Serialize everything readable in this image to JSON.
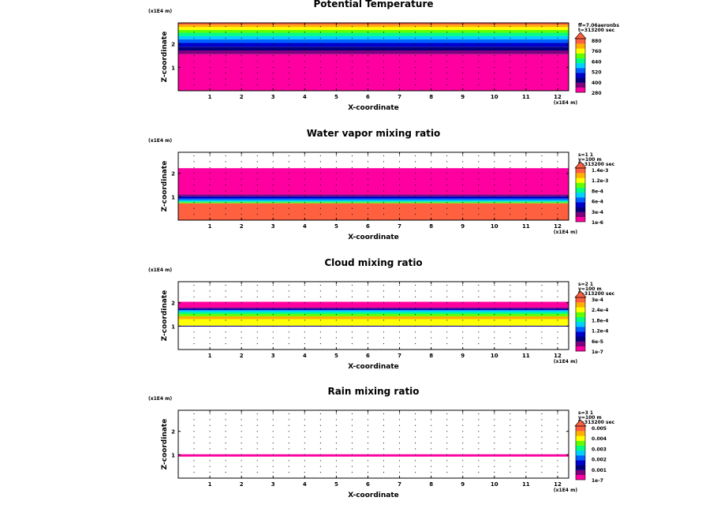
{
  "chart_data": [
    {
      "type": "heatmap",
      "title": "Potential Temperature",
      "xlabel": "X-coordinate",
      "ylabel": "Z-coordinate",
      "x_scale_label": "(x1E4 m)",
      "z_scale_label": "(x1E4 m)",
      "x_ticks": [
        "1",
        "2",
        "3",
        "4",
        "5",
        "6",
        "7",
        "8",
        "9",
        "10",
        "11",
        "12"
      ],
      "z_ticks": [
        "1",
        "2"
      ],
      "xlim": [
        0,
        12.35
      ],
      "zlim": [
        0,
        2.9
      ],
      "info_lines": [
        "ff=7.06aeronbs",
        "t=313200 sec"
      ],
      "colorbar_labels": [
        "880",
        "760",
        "640",
        "520",
        "400",
        "280"
      ],
      "colorbar_colors": [
        "#ff00a0",
        "#7f007f",
        "#00007f",
        "#0000cc",
        "#0060ff",
        "#00d0ff",
        "#00ff80",
        "#60ff00",
        "#ffff00",
        "#ffb000",
        "#ff6040"
      ],
      "layers": [
        {
          "z0": 0.0,
          "z1": 1.56,
          "level": 0
        },
        {
          "z0": 1.56,
          "z1": 1.72,
          "level": 1
        },
        {
          "z0": 1.72,
          "z1": 1.88,
          "level": 2
        },
        {
          "z0": 1.88,
          "z1": 2.04,
          "level": 3
        },
        {
          "z0": 2.04,
          "z1": 2.2,
          "level": 4
        },
        {
          "z0": 2.2,
          "z1": 2.34,
          "level": 5
        },
        {
          "z0": 2.34,
          "z1": 2.48,
          "level": 6
        },
        {
          "z0": 2.48,
          "z1": 2.6,
          "level": 7
        },
        {
          "z0": 2.6,
          "z1": 2.72,
          "level": 8
        },
        {
          "z0": 2.72,
          "z1": 2.82,
          "level": 9
        },
        {
          "z0": 2.82,
          "z1": 2.9,
          "level": 10
        }
      ]
    },
    {
      "type": "heatmap",
      "title": "Water vapor mixing ratio",
      "xlabel": "X-coordinate",
      "ylabel": "Z-coordinate",
      "x_scale_label": "(x1E4 m)",
      "z_scale_label": "(x1E4 m)",
      "x_ticks": [
        "1",
        "2",
        "3",
        "4",
        "5",
        "6",
        "7",
        "8",
        "9",
        "10",
        "11",
        "12"
      ],
      "z_ticks": [
        "1",
        "2"
      ],
      "xlim": [
        0,
        12.35
      ],
      "zlim": [
        0,
        2.9
      ],
      "info_lines": [
        "s=1 1",
        "y=100 m",
        "t=313200 sec"
      ],
      "colorbar_labels": [
        "1.4e-3",
        "1.2e-3",
        "8e-4",
        "6e-4",
        "3e-4",
        "1e-6"
      ],
      "colorbar_colors": [
        "#ff00a0",
        "#7f007f",
        "#00007f",
        "#0000cc",
        "#0060ff",
        "#00d0ff",
        "#00ff80",
        "#60ff00",
        "#ffff00",
        "#ffb000",
        "#ff6040"
      ],
      "layers": [
        {
          "z0": 0.0,
          "z1": 0.72,
          "level": 10
        },
        {
          "z0": 0.72,
          "z1": 0.76,
          "level": 7
        },
        {
          "z0": 0.76,
          "z1": 0.8,
          "level": 6
        },
        {
          "z0": 0.8,
          "z1": 0.86,
          "level": 5
        },
        {
          "z0": 0.86,
          "z1": 0.92,
          "level": 4
        },
        {
          "z0": 0.92,
          "z1": 1.02,
          "level": 3
        },
        {
          "z0": 1.02,
          "z1": 1.1,
          "level": 1
        },
        {
          "z0": 1.1,
          "z1": 2.22,
          "level": 0
        }
      ]
    },
    {
      "type": "heatmap",
      "title": "Cloud mixing ratio",
      "xlabel": "X-coordinate",
      "ylabel": "Z-coordinate",
      "x_scale_label": "(x1E4 m)",
      "z_scale_label": "(x1E4 m)",
      "x_ticks": [
        "1",
        "2",
        "3",
        "4",
        "5",
        "6",
        "7",
        "8",
        "9",
        "10",
        "11",
        "12"
      ],
      "z_ticks": [
        "1",
        "2"
      ],
      "xlim": [
        0,
        12.35
      ],
      "zlim": [
        0,
        2.9
      ],
      "info_lines": [
        "s=2 1",
        "y=100 m",
        "t=313200 sec"
      ],
      "colorbar_labels": [
        "3e-4",
        "2.4e-4",
        "1.8e-4",
        "1.2e-4",
        "6e-5",
        "1e-7"
      ],
      "colorbar_colors": [
        "#ff00a0",
        "#7f007f",
        "#00007f",
        "#0000cc",
        "#0060ff",
        "#00d0ff",
        "#00ff80",
        "#60ff00",
        "#ffff00",
        "#ffb000",
        "#ff6040"
      ],
      "layers": [
        {
          "z0": 0.98,
          "z1": 1.02,
          "level": 2
        },
        {
          "z0": 1.02,
          "z1": 1.1,
          "level": 8
        },
        {
          "z0": 1.1,
          "z1": 1.3,
          "level": 8
        },
        {
          "z0": 1.3,
          "z1": 1.42,
          "level": 9
        },
        {
          "z0": 1.42,
          "z1": 1.52,
          "level": 7
        },
        {
          "z0": 1.52,
          "z1": 1.6,
          "level": 6
        },
        {
          "z0": 1.6,
          "z1": 1.68,
          "level": 5
        },
        {
          "z0": 1.68,
          "z1": 1.74,
          "level": 3
        },
        {
          "z0": 1.74,
          "z1": 1.8,
          "level": 1
        },
        {
          "z0": 1.8,
          "z1": 2.04,
          "level": 0
        }
      ]
    },
    {
      "type": "heatmap",
      "title": "Rain mixing ratio",
      "xlabel": "X-coordinate",
      "ylabel": "Z-coordinate",
      "x_scale_label": "(x1E4 m)",
      "z_scale_label": "(x1E4 m)",
      "x_ticks": [
        "1",
        "2",
        "3",
        "4",
        "5",
        "6",
        "7",
        "8",
        "9",
        "10",
        "11",
        "12"
      ],
      "z_ticks": [
        "1",
        "2"
      ],
      "xlim": [
        0,
        12.35
      ],
      "zlim": [
        0,
        2.9
      ],
      "info_lines": [
        "s=3 1",
        "y=100 m",
        "t=313200 sec"
      ],
      "colorbar_labels": [
        "0.005",
        "0.004",
        "0.003",
        "0.002",
        "0.001",
        "1e-7"
      ],
      "colorbar_colors": [
        "#ff00a0",
        "#7f007f",
        "#00007f",
        "#0000cc",
        "#0060ff",
        "#00d0ff",
        "#00ff80",
        "#60ff00",
        "#ffff00",
        "#ffb000",
        "#ff6040"
      ],
      "layers": [
        {
          "z0": 0.92,
          "z1": 1.02,
          "level": 0
        }
      ]
    }
  ]
}
